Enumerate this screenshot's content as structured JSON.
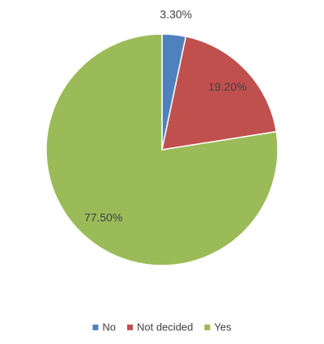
{
  "chart_data": {
    "type": "pie",
    "categories": [
      "No",
      "Not decided",
      "Yes"
    ],
    "values": [
      3.3,
      19.2,
      77.5
    ],
    "value_labels": [
      "3.30%",
      "19.20%",
      "77.50%"
    ],
    "colors": [
      "#4f81bd",
      "#c0504d",
      "#9bbb59"
    ],
    "legend": "bottom"
  }
}
